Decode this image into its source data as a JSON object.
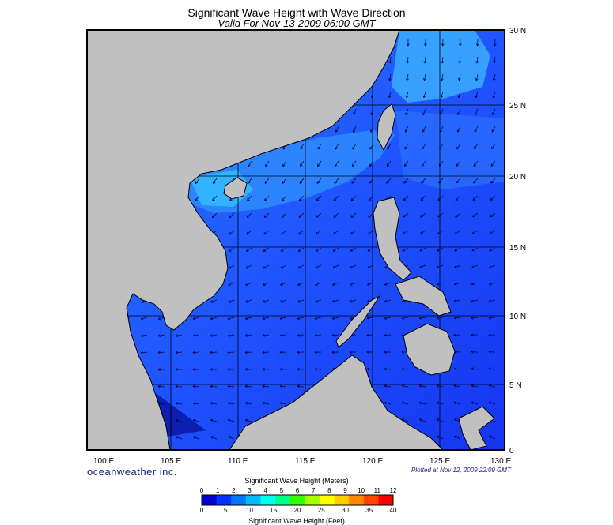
{
  "title": "Significant Wave Height with Wave Direction",
  "subtitle": "Valid For Nov-13-2009 06:00 GMT",
  "brand": "oceanweather inc.",
  "plotted": "Plotted at Nov 12, 2009 22:09 GMT",
  "lat_labels": [
    "30 N",
    "25 N",
    "20 N",
    "15 N",
    "10 N",
    "5 N",
    "0"
  ],
  "lon_labels": [
    "100 E",
    "105 E",
    "110 E",
    "115 E",
    "120 E",
    "125 E",
    "130 E"
  ],
  "legend": {
    "title_meters": "Significant Wave Height (Meters)",
    "title_feet": "Significant Wave Height (Feet)",
    "meters_ticks": [
      "0",
      "1",
      "2",
      "3",
      "4",
      "5",
      "6",
      "7",
      "8",
      "9",
      "10",
      "11",
      "12"
    ],
    "feet_ticks": [
      "0",
      "5",
      "10",
      "15",
      "20",
      "25",
      "30",
      "35",
      "40"
    ],
    "colors": [
      "#0000cc",
      "#0033ff",
      "#0077ff",
      "#00bbff",
      "#00ffee",
      "#00ff88",
      "#33ff00",
      "#aaff00",
      "#ffff00",
      "#ffcc00",
      "#ff8800",
      "#ff4400",
      "#ff0000"
    ]
  },
  "colors": {
    "land": "#c0c0c0",
    "sea_low": "#1a3dff",
    "sea_mid": "#2255ff",
    "sea_high": "#33aaff",
    "arrow": "#000033"
  }
}
